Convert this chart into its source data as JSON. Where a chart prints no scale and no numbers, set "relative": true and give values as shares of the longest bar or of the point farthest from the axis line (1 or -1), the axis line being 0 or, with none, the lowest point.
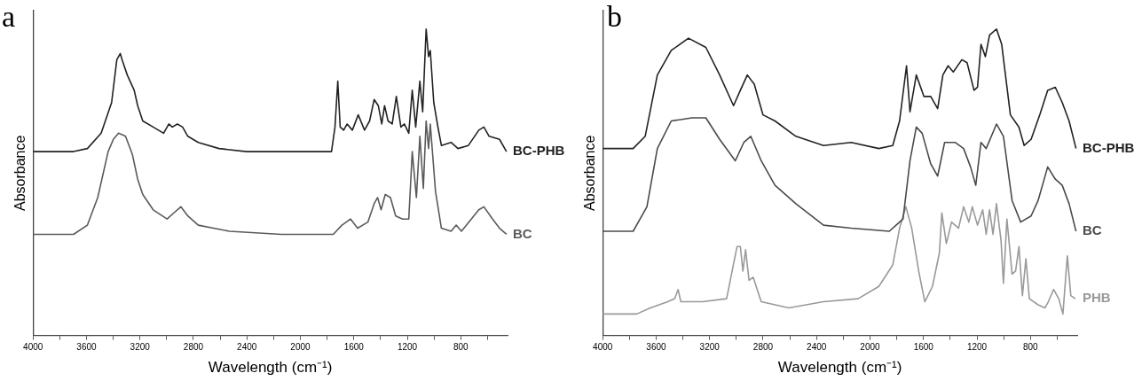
{
  "chart_data": [
    {
      "type": "line",
      "title": "a",
      "xlabel": "Wavelength (cm⁻¹)",
      "ylabel": "Absorbance",
      "relative": true,
      "grid": false,
      "legend": false,
      "marker": "none",
      "line_style": "solid",
      "xlim": [
        4000,
        450
      ],
      "xticks": [
        4000,
        {
          "value": 3800,
          "label": null
        },
        3600,
        {
          "value": 3400,
          "label": null
        },
        3200,
        {
          "value": 3000,
          "label": null
        },
        2800,
        {
          "value": 2600,
          "label": null
        },
        2400,
        {
          "value": 2200,
          "label": null
        },
        2000,
        {
          "value": 1800,
          "label": null
        },
        1600,
        {
          "value": 1400,
          "label": null
        },
        1200,
        {
          "value": 1000,
          "label": null
        },
        800,
        {
          "value": 600,
          "label": null
        }
      ],
      "series": [
        {
          "name": "BC-PHB",
          "color": "#222222",
          "x": [
            4000,
            3697,
            3593,
            3490,
            3412,
            3373,
            3347,
            3334,
            3295,
            3243,
            3217,
            3179,
            3101,
            3023,
            2984,
            2958,
            2920,
            2881,
            2842,
            2764,
            2609,
            2401,
            2142,
            1767,
            1741,
            1720,
            1702,
            1676,
            1650,
            1611,
            1567,
            1520,
            1482,
            1448,
            1417,
            1391,
            1370,
            1344,
            1313,
            1282,
            1248,
            1222,
            1189,
            1163,
            1137,
            1106,
            1085,
            1059,
            1041,
            1028,
            1002,
            971,
            945,
            873,
            821,
            743,
            665,
            627,
            588,
            510,
            458
          ],
          "values": [
            0.6,
            0.6,
            0.61,
            0.66,
            0.76,
            0.9,
            0.92,
            0.9,
            0.85,
            0.8,
            0.75,
            0.7,
            0.68,
            0.66,
            0.69,
            0.68,
            0.69,
            0.68,
            0.65,
            0.63,
            0.61,
            0.6,
            0.6,
            0.6,
            0.68,
            0.83,
            0.68,
            0.67,
            0.69,
            0.67,
            0.72,
            0.67,
            0.7,
            0.77,
            0.75,
            0.69,
            0.75,
            0.7,
            0.69,
            0.78,
            0.68,
            0.69,
            0.66,
            0.8,
            0.68,
            0.83,
            0.73,
            1.0,
            0.91,
            0.93,
            0.76,
            0.68,
            0.62,
            0.63,
            0.61,
            0.62,
            0.67,
            0.68,
            0.65,
            0.64,
            0.6
          ]
        },
        {
          "name": "BC",
          "color": "#5a5a5a",
          "x": [
            4000,
            3697,
            3593,
            3516,
            3438,
            3399,
            3360,
            3308,
            3256,
            3217,
            3179,
            3101,
            2997,
            2946,
            2894,
            2842,
            2764,
            2531,
            2142,
            1754,
            1689,
            1624,
            1572,
            1495,
            1448,
            1422,
            1396,
            1365,
            1326,
            1287,
            1235,
            1189,
            1163,
            1132,
            1106,
            1080,
            1059,
            1041,
            1028,
            989,
            945,
            873,
            834,
            795,
            665,
            627,
            562,
            510,
            458
          ],
          "values": [
            0.33,
            0.33,
            0.36,
            0.45,
            0.6,
            0.64,
            0.66,
            0.65,
            0.59,
            0.51,
            0.46,
            0.41,
            0.38,
            0.4,
            0.42,
            0.39,
            0.36,
            0.34,
            0.33,
            0.33,
            0.36,
            0.38,
            0.35,
            0.37,
            0.43,
            0.45,
            0.41,
            0.46,
            0.45,
            0.39,
            0.38,
            0.38,
            0.6,
            0.45,
            0.65,
            0.48,
            0.7,
            0.61,
            0.69,
            0.47,
            0.35,
            0.34,
            0.36,
            0.34,
            0.41,
            0.42,
            0.38,
            0.35,
            0.33
          ]
        }
      ]
    },
    {
      "type": "line",
      "title": "b",
      "xlabel": "Wavelength (cm⁻¹)",
      "ylabel": "Absorbance",
      "relative": true,
      "grid": false,
      "legend": false,
      "marker": "none",
      "line_style": "solid",
      "xlim": [
        4000,
        450
      ],
      "xticks": [
        4000,
        {
          "value": 3800,
          "label": null
        },
        3600,
        {
          "value": 3400,
          "label": null
        },
        3200,
        {
          "value": 3000,
          "label": null
        },
        2800,
        {
          "value": 2600,
          "label": null
        },
        2400,
        {
          "value": 2200,
          "label": null
        },
        2000,
        {
          "value": 1800,
          "label": null
        },
        1600,
        {
          "value": 1400,
          "label": null
        },
        1200,
        {
          "value": 1000,
          "label": null
        },
        800,
        {
          "value": 600,
          "label": null
        }
      ],
      "series": [
        {
          "name": "BC-PHB",
          "color": "#222222",
          "x": [
            4000,
            3772,
            3682,
            3591,
            3487,
            3358,
            3228,
            3125,
            3021,
            2970,
            2918,
            2866,
            2801,
            2711,
            2555,
            2348,
            2141,
            1934,
            1830,
            1779,
            1727,
            1701,
            1654,
            1597,
            1546,
            1494,
            1455,
            1416,
            1377,
            1313,
            1274,
            1222,
            1196,
            1170,
            1137,
            1106,
            1054,
            1015,
            950,
            886,
            847,
            795,
            730,
            671,
            614,
            562,
            511,
            459
          ],
          "values": [
            0.61,
            0.61,
            0.65,
            0.85,
            0.93,
            0.97,
            0.94,
            0.85,
            0.75,
            0.8,
            0.85,
            0.82,
            0.72,
            0.7,
            0.65,
            0.62,
            0.63,
            0.61,
            0.62,
            0.7,
            0.88,
            0.73,
            0.85,
            0.78,
            0.78,
            0.74,
            0.85,
            0.88,
            0.86,
            0.9,
            0.89,
            0.8,
            0.81,
            0.95,
            0.91,
            0.98,
            1.0,
            0.95,
            0.72,
            0.68,
            0.62,
            0.64,
            0.72,
            0.8,
            0.81,
            0.76,
            0.7,
            0.61
          ]
        },
        {
          "name": "BC",
          "color": "#4a4a4a",
          "x": [
            4000,
            3772,
            3669,
            3591,
            3487,
            3332,
            3228,
            3125,
            3008,
            2944,
            2892,
            2814,
            2711,
            2555,
            2348,
            2141,
            1856,
            1753,
            1701,
            1654,
            1610,
            1546,
            1494,
            1442,
            1364,
            1300,
            1248,
            1209,
            1170,
            1131,
            1054,
            1002,
            937,
            873,
            795,
            743,
            671,
            614,
            562,
            511,
            459
          ],
          "values": [
            0.34,
            0.34,
            0.42,
            0.61,
            0.7,
            0.71,
            0.71,
            0.64,
            0.57,
            0.63,
            0.65,
            0.57,
            0.49,
            0.43,
            0.36,
            0.35,
            0.34,
            0.38,
            0.57,
            0.68,
            0.66,
            0.56,
            0.52,
            0.63,
            0.63,
            0.61,
            0.55,
            0.49,
            0.63,
            0.61,
            0.69,
            0.65,
            0.44,
            0.37,
            0.39,
            0.44,
            0.55,
            0.51,
            0.49,
            0.43,
            0.34
          ]
        },
        {
          "name": "PHB",
          "color": "#999999",
          "x": [
            4000,
            3746,
            3643,
            3513,
            3461,
            3436,
            3415,
            3254,
            3073,
            2995,
            2970,
            2951,
            2931,
            2905,
            2874,
            2814,
            2607,
            2348,
            2089,
            1934,
            1830,
            1779,
            1732,
            1688,
            1636,
            1590,
            1533,
            1481,
            1463,
            1429,
            1390,
            1338,
            1300,
            1261,
            1235,
            1196,
            1157,
            1131,
            1106,
            1080,
            1054,
            1020,
            1002,
            976,
            937,
            911,
            886,
            860,
            834,
            808,
            743,
            691,
            666,
            627,
            588,
            557,
            524,
            498,
            464
          ],
          "values": [
            0.07,
            0.07,
            0.09,
            0.11,
            0.12,
            0.15,
            0.11,
            0.11,
            0.12,
            0.29,
            0.29,
            0.21,
            0.28,
            0.18,
            0.19,
            0.11,
            0.09,
            0.11,
            0.12,
            0.16,
            0.23,
            0.35,
            0.42,
            0.35,
            0.21,
            0.11,
            0.16,
            0.27,
            0.4,
            0.3,
            0.37,
            0.35,
            0.42,
            0.37,
            0.42,
            0.36,
            0.41,
            0.33,
            0.41,
            0.33,
            0.43,
            0.31,
            0.17,
            0.38,
            0.2,
            0.21,
            0.29,
            0.13,
            0.25,
            0.12,
            0.1,
            0.09,
            0.11,
            0.15,
            0.12,
            0.07,
            0.26,
            0.13,
            0.12
          ]
        }
      ]
    }
  ]
}
